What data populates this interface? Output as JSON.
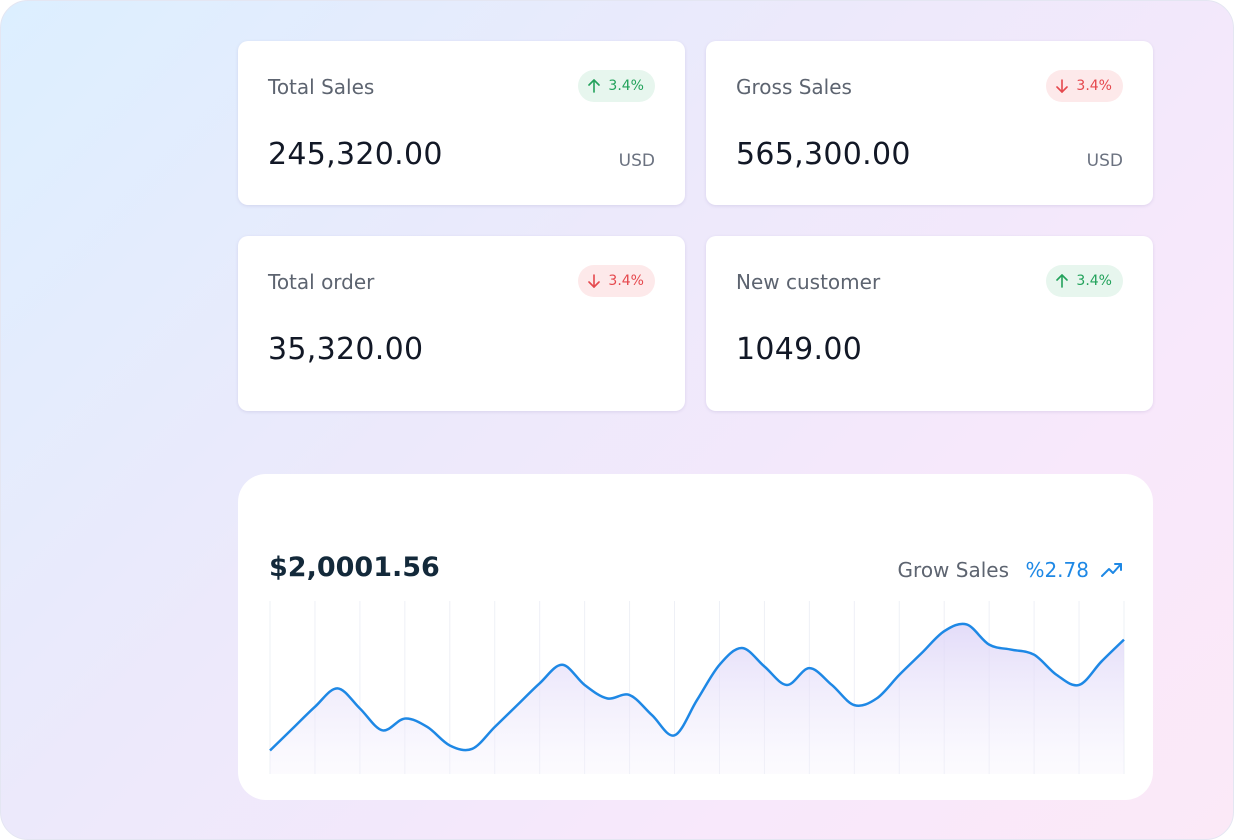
{
  "cards": [
    {
      "label": "Total Sales",
      "trend": "up",
      "change": "3.4%",
      "value": "245,320.00",
      "unit": "USD"
    },
    {
      "label": "Gross Sales",
      "trend": "down",
      "change": "3.4%",
      "value": "565,300.00",
      "unit": "USD"
    },
    {
      "label": "Total order",
      "trend": "down",
      "change": "3.4%",
      "value": "35,320.00"
    },
    {
      "label": "New customer",
      "trend": "up",
      "change": "3.4%",
      "value": "1049.00"
    }
  ],
  "chart_data": {
    "type": "line",
    "title": "$2,0001.56",
    "metric_label": "Grow Sales",
    "metric_value": "%2.78",
    "color": "#1e88e5",
    "ylim": [
      0,
      100
    ],
    "values": [
      14,
      27,
      40,
      51,
      39,
      26,
      33,
      28,
      17,
      15,
      28,
      41,
      54,
      65,
      53,
      45,
      47,
      35,
      23,
      44,
      65,
      75,
      64,
      53,
      63,
      53,
      41,
      45,
      59,
      72,
      85,
      89,
      77,
      74,
      71,
      59,
      53,
      67,
      80
    ]
  }
}
